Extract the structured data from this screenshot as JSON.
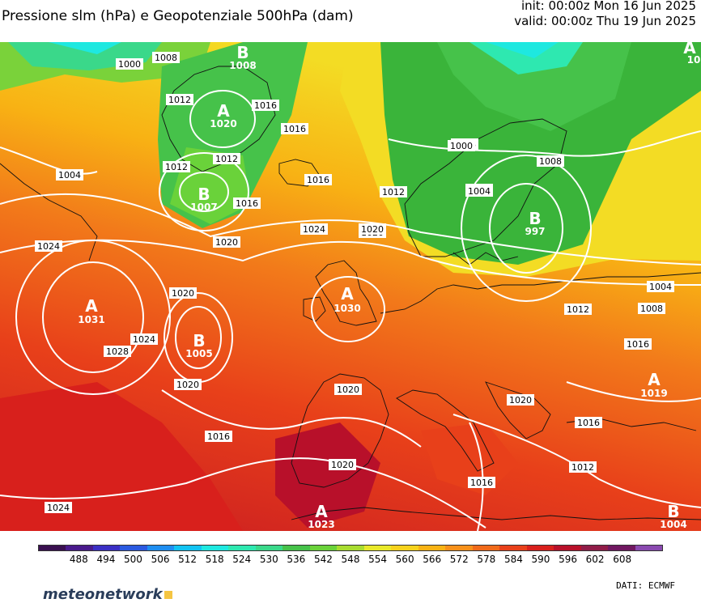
{
  "header": {
    "title": "Pressione slm (hPa) e Geopotenziale 500hPa (dam)",
    "init": "init: 00:00z Mon 16 Jun 2025",
    "valid": "valid: 00:00z Thu 19 Jun 2025"
  },
  "colorbar": {
    "labels": [
      "488",
      "494",
      "500",
      "506",
      "512",
      "518",
      "524",
      "530",
      "536",
      "542",
      "548",
      "554",
      "560",
      "566",
      "572",
      "578",
      "584",
      "590",
      "596",
      "602",
      "608"
    ],
    "colors": [
      "#3a1050",
      "#4a1a8c",
      "#3b2fc4",
      "#2b5ae0",
      "#1f8ef0",
      "#12c3f2",
      "#1ee8e0",
      "#2ee8b0",
      "#3ad88a",
      "#46c24a",
      "#6ad23a",
      "#a8dc30",
      "#e8e82a",
      "#f6d21c",
      "#f8b214",
      "#f7901a",
      "#f06a1a",
      "#e8401a",
      "#d8201c",
      "#b8102a",
      "#901c48",
      "#701860",
      "#8a4ab0"
    ]
  },
  "systems": [
    {
      "type": "B",
      "value": "1008"
    },
    {
      "type": "A",
      "value": "1020"
    },
    {
      "type": "B",
      "value": "1007"
    },
    {
      "type": "A",
      "value": "1031"
    },
    {
      "type": "B",
      "value": "1005"
    },
    {
      "type": "A",
      "value": "1030"
    },
    {
      "type": "B",
      "value": "997"
    },
    {
      "type": "A",
      "value": "1019"
    },
    {
      "type": "A",
      "value": "1023"
    },
    {
      "type": "B",
      "value": "1004"
    },
    {
      "type": "A",
      "value": "10"
    }
  ],
  "isobar_labels": [
    "1000",
    "1008",
    "1012",
    "1016",
    "1012",
    "1016",
    "1012",
    "1004",
    "1016",
    "1020",
    "1024",
    "1020",
    "1012",
    "1008",
    "1004",
    "1016",
    "1008",
    "1000",
    "1004",
    "1012",
    "1004",
    "1008",
    "1016",
    "1020",
    "1024",
    "1028",
    "1024",
    "1020",
    "1016",
    "1020",
    "1020",
    "1020",
    "1020",
    "1016",
    "1016",
    "1012",
    "1024"
  ],
  "branding": {
    "logo": "meteonetwork",
    "source": "DATI:  ECMWF"
  }
}
